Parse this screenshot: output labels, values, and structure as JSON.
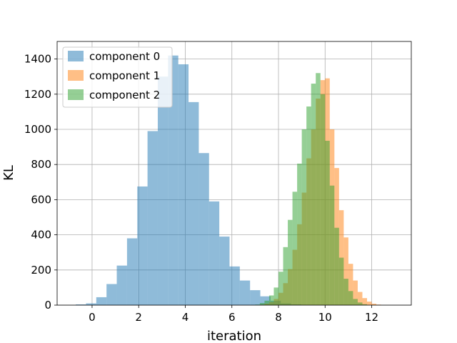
{
  "chart_data": {
    "type": "bar",
    "title": "",
    "xlabel": "iteration",
    "ylabel": "KL",
    "xlim": [
      -1.5,
      13.7
    ],
    "ylim": [
      0,
      1500
    ],
    "xticks": [
      0,
      2,
      4,
      6,
      8,
      10,
      12
    ],
    "yticks": [
      0,
      200,
      400,
      600,
      800,
      1000,
      1200,
      1400
    ],
    "grid": true,
    "legend_position": "top-left",
    "series": [
      {
        "name": "component 0",
        "color": "#1f77b4",
        "alpha": 0.5,
        "bin_start": -0.7,
        "bin_width": 0.44,
        "counts": [
          4,
          10,
          45,
          120,
          225,
          380,
          675,
          990,
          1300,
          1420,
          1370,
          1155,
          865,
          590,
          390,
          220,
          140,
          85,
          50,
          25,
          10,
          4
        ]
      },
      {
        "name": "component 1",
        "color": "#ff7f0e",
        "alpha": 0.5,
        "bin_start": 7.2,
        "bin_width": 0.2,
        "counts": [
          3,
          8,
          18,
          35,
          70,
          125,
          205,
          315,
          460,
          640,
          835,
          1000,
          1175,
          1280,
          1290,
          1000,
          780,
          540,
          385,
          235,
          140,
          75,
          40,
          20,
          8,
          3
        ]
      },
      {
        "name": "component 2",
        "color": "#2ca02c",
        "alpha": 0.5,
        "bin_start": 7.0,
        "bin_width": 0.2,
        "counts": [
          3,
          12,
          25,
          55,
          100,
          190,
          330,
          485,
          645,
          805,
          1000,
          1130,
          1260,
          1320,
          1200,
          935,
          680,
          440,
          270,
          150,
          80,
          35,
          15,
          5
        ]
      }
    ]
  }
}
